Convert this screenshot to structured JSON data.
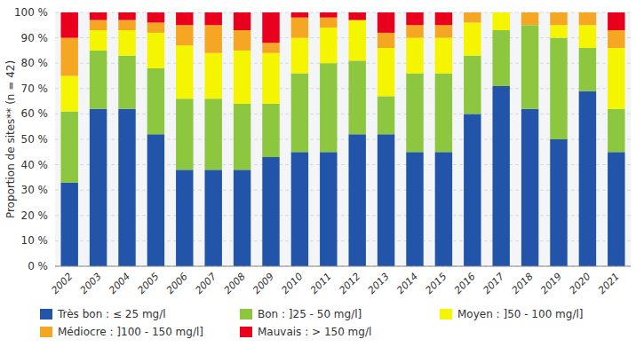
{
  "chart_data": {
    "type": "bar",
    "stacked": true,
    "grid": true,
    "legend": "bottom",
    "y_label": "Proportion de sites** (n = 42)",
    "categories": [
      "2002",
      "2003",
      "2004",
      "2005",
      "2006",
      "2007",
      "2008",
      "2009",
      "2010",
      "2011",
      "2012",
      "2013",
      "2014",
      "2015",
      "2016",
      "2017",
      "2018",
      "2019",
      "2020",
      "2021"
    ],
    "series": [
      {
        "name": "Très bon : ≤ 25 mg/l",
        "color": "#2255aa",
        "values": [
          33,
          62,
          62,
          52,
          38,
          38,
          38,
          43,
          45,
          45,
          52,
          52,
          45,
          45,
          60,
          71,
          62,
          50,
          69,
          45
        ]
      },
      {
        "name": "Bon : ]25 - 50 mg/l]",
        "color": "#8dc63f",
        "values": [
          28,
          23,
          21,
          26,
          28,
          28,
          26,
          21,
          31,
          35,
          29,
          15,
          31,
          31,
          23,
          22,
          33,
          40,
          17,
          17
        ]
      },
      {
        "name": "Moyen : ]50 - 100 mg/l]",
        "color": "#f5f500",
        "values": [
          14,
          8,
          10,
          14,
          21,
          18,
          21,
          20,
          14,
          14,
          16,
          19,
          14,
          14,
          13,
          7,
          0,
          5,
          9,
          24
        ]
      },
      {
        "name": "Médiocre : ]100 - 150 mg/l]",
        "color": "#f5a623",
        "values": [
          15,
          4,
          4,
          4,
          8,
          11,
          8,
          4,
          8,
          4,
          0,
          6,
          5,
          5,
          4,
          0,
          5,
          5,
          5,
          7
        ]
      },
      {
        "name": "Mauvais : > 150 mg/l",
        "color": "#e8001c",
        "values": [
          10,
          3,
          3,
          4,
          5,
          5,
          7,
          12,
          2,
          2,
          3,
          8,
          5,
          5,
          0,
          0,
          0,
          0,
          0,
          7
        ]
      }
    ],
    "ylim": [
      0,
      100
    ],
    "yticks": [
      {
        "value": 0,
        "label": "0 %"
      },
      {
        "value": 10,
        "label": "10 %"
      },
      {
        "value": 20,
        "label": "20 %"
      },
      {
        "value": 30,
        "label": "30 %"
      },
      {
        "value": 40,
        "label": "40 %"
      },
      {
        "value": 50,
        "label": "50 %"
      },
      {
        "value": 60,
        "label": "60 %"
      },
      {
        "value": 70,
        "label": "70 %"
      },
      {
        "value": 80,
        "label": "80 %"
      },
      {
        "value": 90,
        "label": "90 %"
      },
      {
        "value": 100,
        "label": "100 %"
      }
    ]
  }
}
